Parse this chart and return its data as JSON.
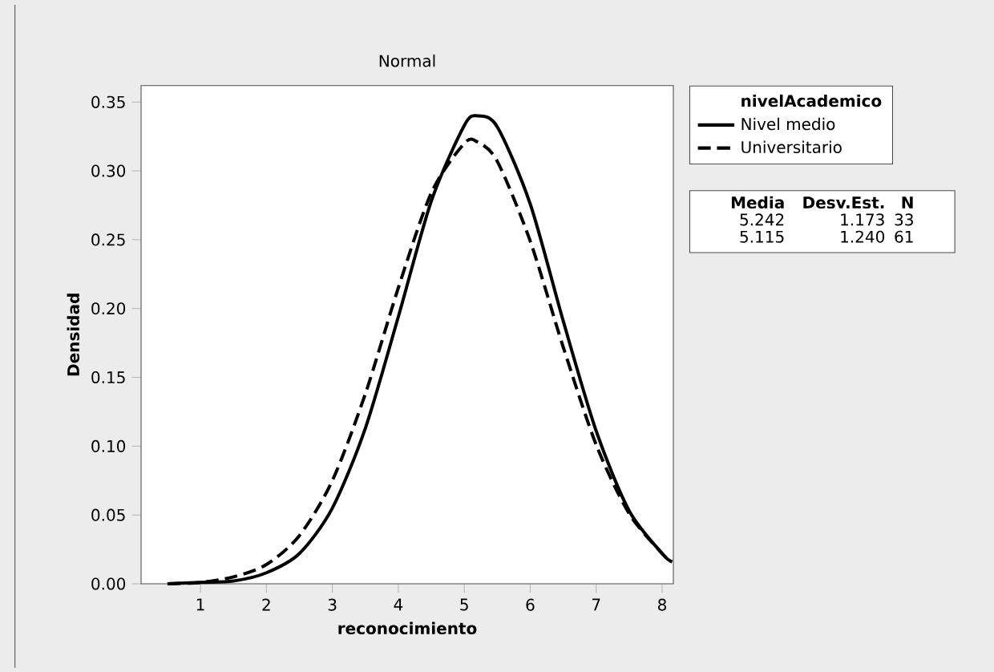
{
  "chart_data": {
    "type": "line",
    "title": "Normal",
    "xlabel": "reconocimiento",
    "ylabel": "Densidad",
    "legend_title": "nivelAcademico",
    "x": [
      0.5,
      1,
      1.5,
      2,
      2.5,
      3,
      3.5,
      4,
      4.5,
      5,
      5.2,
      5.5,
      6,
      6.5,
      7,
      7.5,
      8,
      8.15
    ],
    "series": [
      {
        "name": "Nivel medio",
        "color": "#000000",
        "line_style": "solid",
        "values": [
          0.0,
          0.001,
          0.002,
          0.008,
          0.022,
          0.055,
          0.113,
          0.194,
          0.278,
          0.333,
          0.34,
          0.332,
          0.276,
          0.191,
          0.111,
          0.053,
          0.022,
          0.016
        ]
      },
      {
        "name": "Universitario",
        "color": "#000000",
        "line_style": "dashed",
        "values": [
          0.0,
          0.001,
          0.005,
          0.014,
          0.035,
          0.075,
          0.138,
          0.215,
          0.284,
          0.32,
          0.321,
          0.307,
          0.249,
          0.172,
          0.101,
          0.051,
          0.022,
          0.016
        ]
      }
    ],
    "xlim": [
      0.1,
      8.17
    ],
    "ylim": [
      0,
      0.362
    ],
    "xticks": [
      1,
      2,
      3,
      4,
      5,
      6,
      7,
      8
    ],
    "yticks": [
      {
        "value": 0,
        "label": "0.00"
      },
      {
        "value": 0.05,
        "label": "0.05"
      },
      {
        "value": 0.1,
        "label": "0.10"
      },
      {
        "value": 0.15,
        "label": "0.15"
      },
      {
        "value": 0.2,
        "label": "0.20"
      },
      {
        "value": 0.25,
        "label": "0.25"
      },
      {
        "value": 0.3,
        "label": "0.30"
      },
      {
        "value": 0.35,
        "label": "0.35"
      }
    ],
    "legend": "right",
    "grid": false,
    "marker": "none",
    "annotations": [
      "Media",
      "Desv.Est.",
      "N",
      "5.242",
      "1.173",
      "33",
      "5.115",
      "1.240",
      "61"
    ]
  }
}
